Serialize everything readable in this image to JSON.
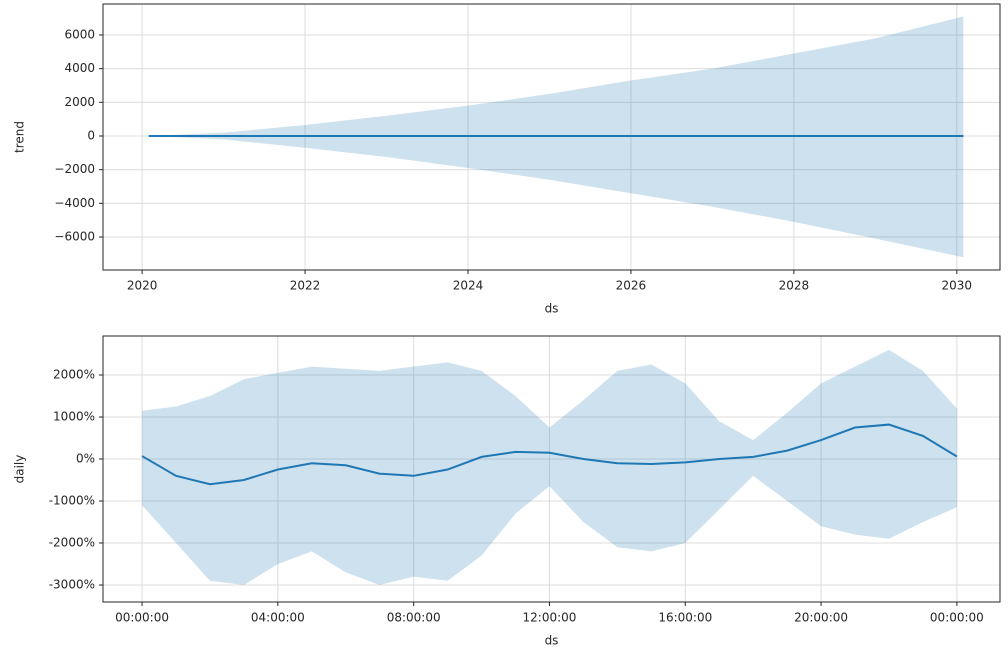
{
  "chart_data": [
    {
      "type": "line",
      "ylabel": "trend",
      "xlabel": "ds",
      "color": "#1f77b4",
      "grid": true,
      "x": [
        2020.08,
        2021,
        2022,
        2023,
        2024,
        2025,
        2026,
        2027,
        2028,
        2029,
        2030.08
      ],
      "values": [
        0,
        0,
        0,
        0,
        0,
        0,
        0,
        0,
        0,
        0,
        0
      ],
      "upper": [
        0,
        200,
        650,
        1200,
        1800,
        2500,
        3300,
        4000,
        4900,
        5800,
        7100
      ],
      "lower": [
        0,
        -200,
        -700,
        -1250,
        -1900,
        -2600,
        -3400,
        -4200,
        -5100,
        -6100,
        -7200
      ],
      "xlim": [
        2019.52,
        2030.53
      ],
      "xticks": [
        2020,
        2022,
        2024,
        2026,
        2028,
        2030
      ],
      "ylim": [
        -7960,
        7840
      ],
      "yticks": [
        {
          "value": -6000,
          "label": "−6000"
        },
        {
          "value": -4000,
          "label": "−4000"
        },
        {
          "value": -2000,
          "label": "−2000"
        },
        0,
        2000,
        4000,
        6000
      ]
    },
    {
      "type": "line",
      "ylabel": "daily",
      "xlabel": "ds",
      "color": "#1f77b4",
      "grid": true,
      "x": [
        0,
        1,
        2,
        3,
        4,
        5,
        6,
        7,
        8,
        9,
        10,
        11,
        12,
        13,
        14,
        15,
        16,
        17,
        18,
        19,
        20,
        21,
        22,
        23,
        24
      ],
      "values": [
        70,
        -400,
        -600,
        -500,
        -250,
        -100,
        -150,
        -350,
        -400,
        -250,
        50,
        170,
        150,
        0,
        -100,
        -120,
        -80,
        0,
        50,
        200,
        450,
        750,
        820,
        550,
        60
      ],
      "upper": [
        1150,
        1250,
        1500,
        1900,
        2050,
        2200,
        2150,
        2100,
        2200,
        2300,
        2100,
        1500,
        750,
        1400,
        2100,
        2250,
        1800,
        900,
        450,
        1100,
        1800,
        2200,
        2600,
        2100,
        1200
      ],
      "lower": [
        -1100,
        -2000,
        -2900,
        -3000,
        -2500,
        -2200,
        -2700,
        -3000,
        -2800,
        -2900,
        -2300,
        -1300,
        -650,
        -1500,
        -2100,
        -2200,
        -2000,
        -1200,
        -400,
        -1000,
        -1600,
        -1800,
        -1900,
        -1500,
        -1150
      ],
      "xlim": [
        -1.15,
        25.27
      ],
      "xticks": [
        {
          "value": 0,
          "label": "00:00:00"
        },
        {
          "value": 4,
          "label": "04:00:00"
        },
        {
          "value": 8,
          "label": "08:00:00"
        },
        {
          "value": 12,
          "label": "12:00:00"
        },
        {
          "value": 16,
          "label": "16:00:00"
        },
        {
          "value": 20,
          "label": "20:00:00"
        },
        {
          "value": 24,
          "label": "00:00:00"
        }
      ],
      "ylim": [
        -3405,
        2929
      ],
      "yticks": [
        {
          "value": -3000,
          "label": "-3000%"
        },
        {
          "value": -2000,
          "label": "-2000%"
        },
        {
          "value": -1000,
          "label": "-1000%"
        },
        {
          "value": 0,
          "label": "0%"
        },
        {
          "value": 1000,
          "label": "1000%"
        },
        {
          "value": 2000,
          "label": "2000%"
        }
      ]
    }
  ]
}
